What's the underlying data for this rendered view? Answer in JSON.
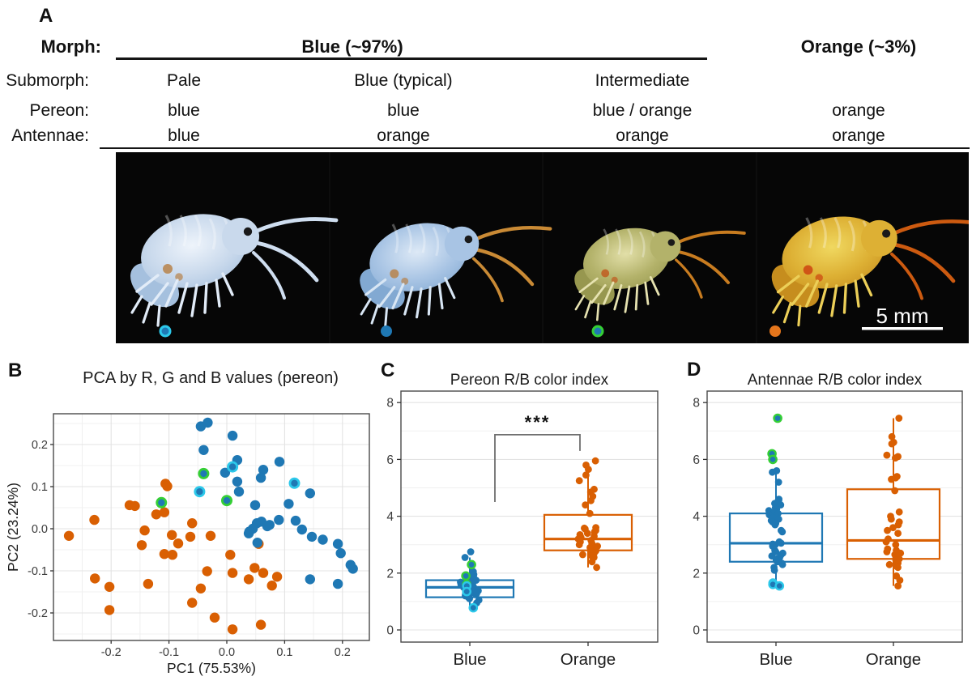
{
  "colors": {
    "blue": "#1f78b4",
    "orange": "#d95f02",
    "pale_ring": "#2cc8ea",
    "intermediate_ring": "#35cf35",
    "bracket_gray": "#6e6e6e",
    "photo_background": "#060606",
    "scale_bar_white": "#ffffff"
  },
  "panel_a": {
    "label": "A",
    "row_headers": {
      "morph": "Morph:",
      "submorph": "Submorph:",
      "pereon": "Pereon:",
      "antennae": "Antennae:"
    },
    "morph_groups": [
      {
        "label": "Blue (~97%)"
      },
      {
        "label": "Orange (~3%)"
      }
    ],
    "columns": [
      {
        "submorph": "Pale",
        "pereon": "blue",
        "antennae": "blue"
      },
      {
        "submorph": "Blue (typical)",
        "pereon": "blue",
        "antennae": "orange"
      },
      {
        "submorph": "Intermediate",
        "pereon": "blue / orange",
        "antennae": "orange"
      },
      {
        "submorph": "",
        "pereon": "orange",
        "antennae": "orange"
      }
    ],
    "scale_bar_label": "5 mm",
    "photos": [
      {
        "name": "pale",
        "marker_fill": "#1f78b4",
        "marker_ring": "#2cc8ea",
        "body": "#c9d9ec",
        "body2": "#a5c0de",
        "belly": "#eef4fb",
        "antenna": "#cfdef0",
        "leg": "#e2ecf8",
        "accent": "#b7824a"
      },
      {
        "name": "blue-typical",
        "marker_fill": "#1f78b4",
        "marker_ring": null,
        "body": "#a8c4e4",
        "body2": "#82a9d2",
        "belly": "#dde9f6",
        "antenna": "#c98a35",
        "leg": "#d8e6f4",
        "accent": "#b7824a"
      },
      {
        "name": "intermediate",
        "marker_fill": "#1f78b4",
        "marker_ring": "#35cf35",
        "body": "#b3b26a",
        "body2": "#97974f",
        "belly": "#e2dfa8",
        "antenna": "#c87c20",
        "leg": "#e6e2b0",
        "accent": "#c05a20"
      },
      {
        "name": "orange",
        "marker_fill": "#e5761c",
        "marker_ring": null,
        "body": "#ddb034",
        "body2": "#c68d1e",
        "belly": "#f0d860",
        "antenna": "#cc5a10",
        "leg": "#eccf58",
        "accent": "#cc4410"
      }
    ]
  },
  "panel_b": {
    "label": "B",
    "title": "PCA by R, G and B values (pereon)"
  },
  "panel_c": {
    "label": "C",
    "title": "Pereon R/B color index"
  },
  "panel_d": {
    "label": "D",
    "title": "Antennae R/B color index"
  },
  "chart_data": [
    {
      "type": "scatter",
      "title": "PCA by R, G and B values (pereon)",
      "xlabel": "PC1 (75.53%)",
      "ylabel": "PC2 (23.24%)",
      "xlim": [
        -0.3,
        0.246
      ],
      "ylim": [
        -0.265,
        0.273
      ],
      "xticks": [
        -0.2,
        -0.1,
        0.0,
        0.1,
        0.2
      ],
      "yticks": [
        -0.2,
        -0.1,
        0.0,
        0.1,
        0.2
      ],
      "xtick_labels": [
        "-0.2",
        "-0.1",
        "0.0",
        "0.1",
        "0.2"
      ],
      "ytick_labels": [
        "-0.2",
        "-0.1",
        "0.0",
        "0.1",
        "0.2"
      ],
      "grid": true,
      "legend": "none",
      "series": [
        {
          "name": "orange-morph",
          "color": "#d95f02",
          "ring": null,
          "points": [
            [
              -0.106,
              0.107
            ],
            [
              -0.103,
              0.101
            ],
            [
              -0.168,
              0.056
            ],
            [
              -0.159,
              0.054
            ],
            [
              -0.122,
              0.034
            ],
            [
              -0.108,
              0.039
            ],
            [
              -0.229,
              0.021
            ],
            [
              -0.06,
              0.013
            ],
            [
              -0.142,
              -0.004
            ],
            [
              -0.273,
              -0.017
            ],
            [
              -0.095,
              -0.015
            ],
            [
              -0.063,
              -0.019
            ],
            [
              -0.028,
              -0.017
            ],
            [
              -0.147,
              -0.039
            ],
            [
              -0.084,
              -0.035
            ],
            [
              -0.108,
              -0.06
            ],
            [
              -0.094,
              -0.062
            ],
            [
              0.006,
              -0.062
            ],
            [
              0.055,
              -0.036
            ],
            [
              -0.034,
              -0.101
            ],
            [
              0.01,
              -0.105
            ],
            [
              0.048,
              -0.093
            ],
            [
              0.063,
              -0.105
            ],
            [
              0.087,
              -0.114
            ],
            [
              0.038,
              -0.12
            ],
            [
              -0.228,
              -0.118
            ],
            [
              -0.203,
              -0.138
            ],
            [
              -0.136,
              -0.131
            ],
            [
              0.078,
              -0.135
            ],
            [
              -0.045,
              -0.142
            ],
            [
              -0.06,
              -0.176
            ],
            [
              -0.203,
              -0.193
            ],
            [
              -0.021,
              -0.211
            ],
            [
              0.01,
              -0.239
            ],
            [
              0.059,
              -0.228
            ]
          ]
        },
        {
          "name": "blue-typical",
          "color": "#1f78b4",
          "ring": null,
          "points": [
            [
              -0.045,
              0.243
            ],
            [
              -0.033,
              0.252
            ],
            [
              0.01,
              0.221
            ],
            [
              -0.04,
              0.187
            ],
            [
              0.018,
              0.163
            ],
            [
              0.091,
              0.159
            ],
            [
              0.063,
              0.14
            ],
            [
              -0.003,
              0.133
            ],
            [
              0.059,
              0.121
            ],
            [
              0.018,
              0.112
            ],
            [
              0.021,
              0.088
            ],
            [
              0.144,
              0.084
            ],
            [
              0.049,
              0.056
            ],
            [
              0.107,
              0.059
            ],
            [
              0.119,
              0.019
            ],
            [
              0.09,
              0.021
            ],
            [
              0.052,
              0.013
            ],
            [
              0.06,
              0.017
            ],
            [
              0.074,
              0.009
            ],
            [
              0.07,
              0.006
            ],
            [
              0.045,
              0.0
            ],
            [
              0.039,
              -0.007
            ],
            [
              0.038,
              -0.011
            ],
            [
              0.13,
              -0.002
            ],
            [
              0.147,
              -0.019
            ],
            [
              0.166,
              -0.026
            ],
            [
              0.192,
              -0.036
            ],
            [
              0.197,
              -0.058
            ],
            [
              0.214,
              -0.086
            ],
            [
              0.218,
              -0.095
            ],
            [
              0.144,
              -0.12
            ],
            [
              0.192,
              -0.131
            ],
            [
              0.053,
              -0.033
            ]
          ]
        },
        {
          "name": "pale-submorph",
          "color": "#1f78b4",
          "ring": "#2cc8ea",
          "points": [
            [
              0.01,
              0.147
            ],
            [
              0.117,
              0.108
            ],
            [
              -0.047,
              0.088
            ]
          ]
        },
        {
          "name": "intermediate-submorph",
          "color": "#1f78b4",
          "ring": "#35cf35",
          "points": [
            [
              -0.04,
              0.131
            ],
            [
              -0.113,
              0.062
            ],
            [
              0.0,
              0.067
            ]
          ]
        }
      ]
    },
    {
      "type": "box-jitter",
      "title": "Pereon R/B color index",
      "ylim": [
        -0.4,
        8.4
      ],
      "yticks": [
        0,
        2,
        4,
        6,
        8
      ],
      "ytick_labels": [
        "0",
        "2",
        "4",
        "6",
        "8"
      ],
      "categories": [
        "Blue",
        "Orange"
      ],
      "boxes": [
        {
          "category": "Blue",
          "color": "#1f78b4",
          "q1": 1.15,
          "median": 1.5,
          "q3": 1.75,
          "whisker_low": 0.78,
          "whisker_high": 2.55
        },
        {
          "category": "Orange",
          "color": "#d95f02",
          "q1": 2.8,
          "median": 3.2,
          "q3": 4.05,
          "whisker_low": 2.2,
          "whisker_high": 5.8
        }
      ],
      "points": [
        {
          "category": "Blue",
          "color": "#1f78b4",
          "solid": [
            2.75,
            2.55,
            2.05,
            1.95,
            1.85,
            1.8,
            1.78,
            1.75,
            1.72,
            1.7,
            1.68,
            1.65,
            1.62,
            1.6,
            1.58,
            1.55,
            1.52,
            1.5,
            1.48,
            1.45,
            1.42,
            1.4,
            1.38,
            1.35,
            1.3,
            1.28,
            1.25,
            1.22,
            1.2,
            1.15,
            1.1,
            1.05,
            0.95
          ],
          "green_ring": [
            2.3,
            1.9,
            1.6
          ],
          "cyan_ring": [
            1.55,
            1.35,
            0.78
          ]
        },
        {
          "category": "Orange",
          "color": "#d95f02",
          "solid": [
            5.95,
            5.8,
            5.65,
            5.45,
            5.25,
            4.95,
            4.85,
            4.7,
            4.55,
            4.4,
            4.1,
            3.6,
            3.58,
            3.55,
            3.5,
            3.45,
            3.4,
            3.35,
            3.3,
            3.25,
            3.2,
            3.15,
            3.1,
            3.05,
            3.0,
            2.95,
            2.9,
            2.85,
            2.8,
            2.78,
            2.75,
            2.7,
            2.65,
            2.6,
            2.55,
            2.4,
            2.2
          ],
          "green_ring": [],
          "cyan_ring": []
        }
      ],
      "significance": {
        "label": "***",
        "y_bar": 6.87,
        "y_left_end": 4.5,
        "y_right_end": 6.3
      }
    },
    {
      "type": "box-jitter",
      "title": "Antennae R/B color index",
      "ylim": [
        -0.4,
        8.4
      ],
      "yticks": [
        0,
        2,
        4,
        6,
        8
      ],
      "ytick_labels": [
        "0",
        "2",
        "4",
        "6",
        "8"
      ],
      "categories": [
        "Blue",
        "Orange"
      ],
      "boxes": [
        {
          "category": "Blue",
          "color": "#1f78b4",
          "q1": 2.4,
          "median": 3.05,
          "q3": 4.1,
          "whisker_low": 1.6,
          "whisker_high": 5.6
        },
        {
          "category": "Orange",
          "color": "#d95f02",
          "q1": 2.5,
          "median": 3.15,
          "q3": 4.95,
          "whisker_low": 1.55,
          "whisker_high": 7.45
        }
      ],
      "points": [
        {
          "category": "Blue",
          "color": "#1f78b4",
          "solid": [
            5.6,
            5.55,
            5.2,
            4.6,
            4.55,
            4.5,
            4.45,
            4.4,
            4.3,
            4.25,
            4.2,
            4.15,
            4.1,
            4.05,
            4.0,
            3.95,
            3.9,
            3.85,
            3.8,
            3.75,
            3.7,
            3.5,
            3.45,
            3.1,
            3.08,
            3.05,
            3.02,
            3.0,
            2.95,
            2.8,
            2.75,
            2.7,
            2.65,
            2.6,
            2.55,
            2.5,
            2.45,
            2.4,
            2.35,
            2.3,
            2.2,
            2.1
          ],
          "green_ring": [
            7.45,
            6.2,
            6.0
          ],
          "cyan_ring": [
            1.65,
            1.6,
            1.55
          ]
        },
        {
          "category": "Orange",
          "color": "#d95f02",
          "solid": [
            7.45,
            6.8,
            6.6,
            6.55,
            6.15,
            6.1,
            6.05,
            5.4,
            5.35,
            5.3,
            4.9,
            4.15,
            4.0,
            3.9,
            3.8,
            3.7,
            3.6,
            3.5,
            3.4,
            3.2,
            3.1,
            3.0,
            2.85,
            2.8,
            2.75,
            2.7,
            2.65,
            2.6,
            2.55,
            2.5,
            2.45,
            2.35,
            2.3,
            2.25,
            2.2,
            1.9,
            1.75,
            1.55
          ],
          "green_ring": [],
          "cyan_ring": []
        }
      ],
      "significance": null
    }
  ]
}
